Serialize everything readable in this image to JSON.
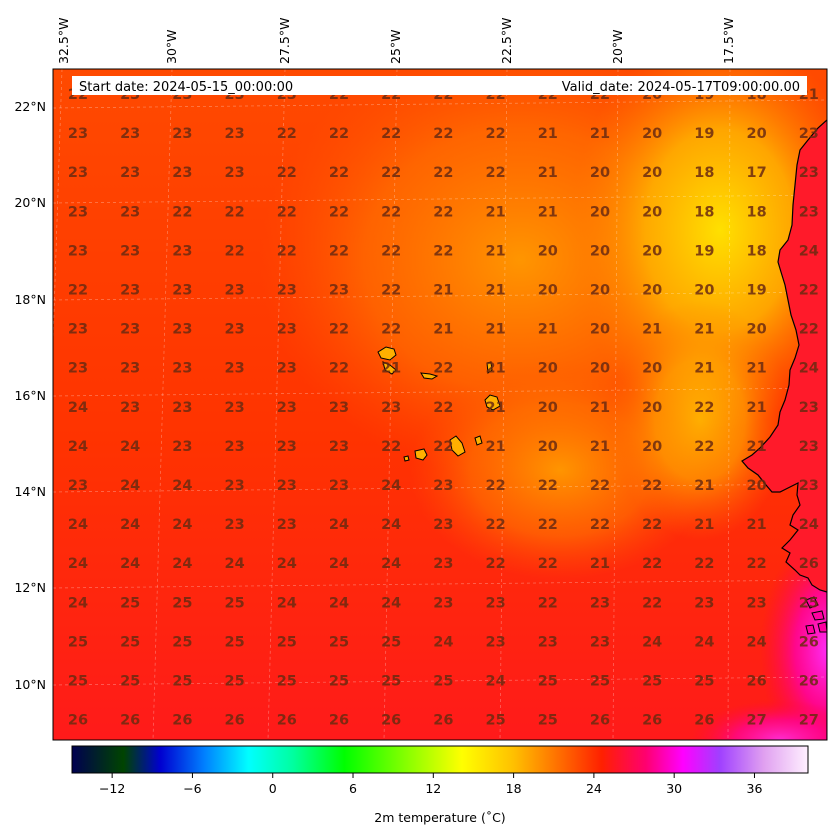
{
  "header": {
    "start_date": "Start date: 2024-05-15_00:00:00",
    "valid_date": "Valid_date: 2024-05-17T09:00:00.00"
  },
  "lon_labels": [
    "32.5°W",
    "30°W",
    "27.5°W",
    "25°W",
    "22.5°W",
    "20°W",
    "17.5°W"
  ],
  "lat_labels": [
    "22°N",
    "20°N",
    "18°N",
    "16°N",
    "14°N",
    "12°N",
    "10°N"
  ],
  "colorbar": {
    "ticks": [
      "−12",
      "−6",
      "0",
      "6",
      "12",
      "18",
      "24",
      "30",
      "36"
    ],
    "label": "2m temperature ($^\\circ$C)",
    "label_display": "2m temperature (˚C)",
    "vmin": -15,
    "vmax": 40,
    "colormap": "gist_ncar-like"
  },
  "grid_values": [
    [
      22,
      23,
      23,
      23,
      23,
      22,
      22,
      22,
      22,
      22,
      22,
      20,
      19,
      18,
      21
    ],
    [
      23,
      23,
      23,
      23,
      22,
      22,
      22,
      22,
      22,
      21,
      21,
      20,
      19,
      20,
      23
    ],
    [
      23,
      23,
      23,
      23,
      22,
      22,
      22,
      22,
      22,
      21,
      20,
      20,
      18,
      17,
      23
    ],
    [
      23,
      23,
      22,
      22,
      22,
      22,
      22,
      22,
      21,
      21,
      20,
      20,
      18,
      18,
      23
    ],
    [
      23,
      23,
      23,
      22,
      22,
      22,
      22,
      22,
      21,
      20,
      20,
      20,
      19,
      18,
      24
    ],
    [
      22,
      23,
      23,
      23,
      23,
      23,
      22,
      21,
      21,
      20,
      20,
      20,
      20,
      19,
      22
    ],
    [
      23,
      23,
      23,
      23,
      23,
      22,
      22,
      21,
      21,
      21,
      20,
      21,
      21,
      20,
      22
    ],
    [
      23,
      23,
      23,
      23,
      23,
      22,
      21,
      22,
      21,
      20,
      20,
      20,
      21,
      21,
      24
    ],
    [
      24,
      23,
      23,
      23,
      23,
      23,
      23,
      22,
      21,
      20,
      21,
      20,
      22,
      21,
      23
    ],
    [
      24,
      24,
      23,
      23,
      23,
      23,
      22,
      22,
      21,
      20,
      21,
      20,
      22,
      21,
      23
    ],
    [
      23,
      24,
      24,
      23,
      23,
      23,
      24,
      23,
      22,
      22,
      22,
      22,
      21,
      20,
      23
    ],
    [
      24,
      24,
      24,
      23,
      23,
      24,
      24,
      23,
      22,
      22,
      22,
      22,
      21,
      21,
      24
    ],
    [
      24,
      24,
      24,
      24,
      24,
      24,
      24,
      23,
      22,
      22,
      21,
      22,
      22,
      22,
      26
    ],
    [
      24,
      25,
      25,
      25,
      24,
      24,
      24,
      23,
      23,
      22,
      23,
      22,
      23,
      23,
      25
    ],
    [
      25,
      25,
      25,
      25,
      25,
      25,
      25,
      24,
      23,
      23,
      23,
      24,
      24,
      24,
      26
    ],
    [
      25,
      25,
      25,
      25,
      25,
      25,
      25,
      25,
      24,
      25,
      25,
      25,
      25,
      26,
      26
    ],
    [
      26,
      26,
      26,
      26,
      26,
      26,
      26,
      26,
      25,
      25,
      26,
      26,
      26,
      27,
      27
    ]
  ],
  "colors": {
    "field_base": "#ff3a00",
    "warm_yellow": "#ffd400",
    "magenta": "#ff00c8",
    "value_text": "#6b2a10",
    "coastline": "#000000"
  }
}
